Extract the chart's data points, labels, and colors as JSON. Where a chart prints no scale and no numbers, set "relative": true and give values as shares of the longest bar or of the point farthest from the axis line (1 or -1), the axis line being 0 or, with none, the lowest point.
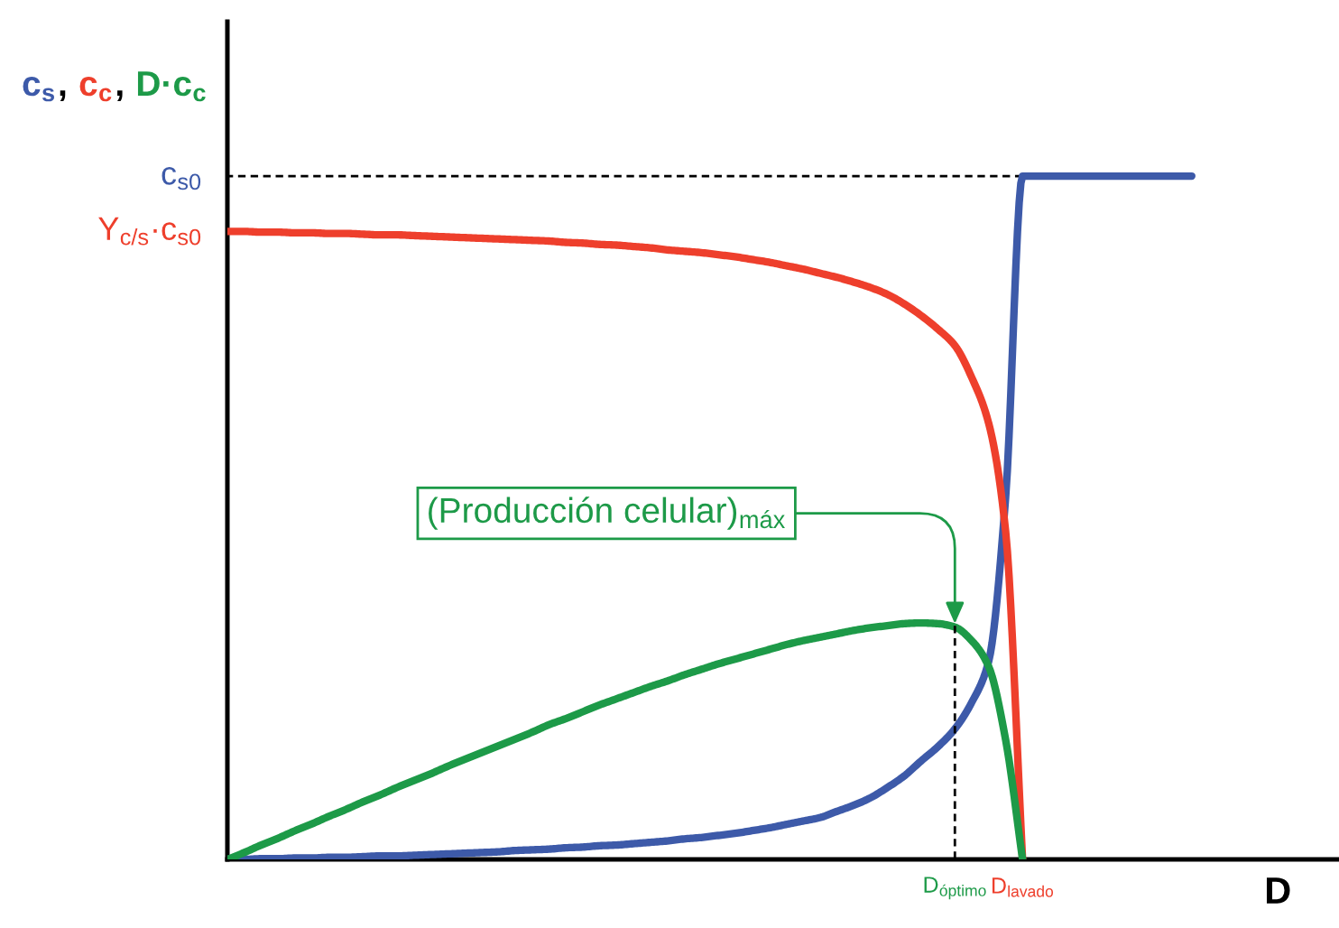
{
  "chart_data": {
    "type": "line",
    "line_style": "solid",
    "relative": true,
    "xlabel": "D",
    "ylabel": "c$_{s}$, c$_{c}$, D·c$_{c}$",
    "tick_labels": "x",
    "categories": [
      null,
      null,
      null,
      null,
      null,
      null,
      null,
      null,
      null,
      null,
      null,
      null,
      null,
      null,
      null,
      null,
      null,
      null,
      null,
      null,
      null,
      null,
      null,
      null,
      null,
      null,
      null,
      null,
      null,
      null,
      null,
      null,
      null,
      null,
      null,
      null,
      null,
      null,
      null,
      null,
      null,
      null,
      null,
      "D$_{óptimo}$",
      null,
      null,
      null,
      "D$_{lavado}$",
      null,
      null,
      null,
      null,
      null,
      null,
      null,
      null,
      null,
      null
    ],
    "ref_lines": [
      {
        "axis": "y",
        "value": 1,
        "label": "c$_{s0}$",
        "color": "#000000",
        "line_style": "dashed"
      }
    ],
    "annotations": [
      "Y$_{c/s}$·c$_{s0}$",
      {
        "text": "(Producción celular)$_{máx}$",
        "x": "D$_{óptimo}$",
        "y": 0.345
      }
    ],
    "series": [
      {
        "color": "#3d5aa9",
        "values": [
          0,
          0,
          0.001,
          0.001,
          0.002,
          0.002,
          0.003,
          0.003,
          0.004,
          0.005,
          0.005,
          0.006,
          0.007,
          0.008,
          0.009,
          0.01,
          0.011,
          0.013,
          0.014,
          0.015,
          0.017,
          0.018,
          0.02,
          0.021,
          0.023,
          0.025,
          0.027,
          0.03,
          0.032,
          0.035,
          0.038,
          0.042,
          0.046,
          0.051,
          0.056,
          0.061,
          0.07,
          0.079,
          0.09,
          0.105,
          0.122,
          0.144,
          0.165,
          0.191,
          0.23,
          0.29,
          0.53,
          1,
          1,
          1,
          1,
          1,
          1,
          1,
          1,
          1,
          1,
          1
        ]
      },
      {
        "color": "#ee3f2c",
        "values": [
          0.919,
          0.919,
          0.918,
          0.918,
          0.917,
          0.917,
          0.916,
          0.916,
          0.915,
          0.914,
          0.914,
          0.913,
          0.912,
          0.911,
          0.91,
          0.909,
          0.908,
          0.907,
          0.906,
          0.905,
          0.903,
          0.902,
          0.9,
          0.899,
          0.897,
          0.895,
          0.892,
          0.89,
          0.888,
          0.885,
          0.882,
          0.878,
          0.874,
          0.869,
          0.864,
          0.858,
          0.852,
          0.845,
          0.837,
          0.827,
          0.813,
          0.796,
          0.776,
          0.752,
          0.705,
          0.638,
          0.48,
          0,
          null,
          null,
          null,
          null,
          null,
          null,
          null,
          null,
          null,
          null
        ]
      },
      {
        "color": "#1d9a48",
        "values": [
          0,
          0.01,
          0.021,
          0.031,
          0.042,
          0.052,
          0.063,
          0.073,
          0.084,
          0.094,
          0.105,
          0.115,
          0.125,
          0.136,
          0.146,
          0.156,
          0.166,
          0.176,
          0.186,
          0.197,
          0.206,
          0.216,
          0.226,
          0.235,
          0.244,
          0.253,
          0.261,
          0.27,
          0.278,
          0.286,
          0.293,
          0.3,
          0.307,
          0.314,
          0.32,
          0.325,
          0.33,
          0.335,
          0.339,
          0.342,
          0.345,
          0.346,
          0.345,
          0.34,
          0.32,
          0.282,
          0.175,
          0,
          null,
          null,
          null,
          null,
          null,
          null,
          null,
          null,
          null,
          null
        ]
      },
      {
        "color": "#000000",
        "line_style": "dashed",
        "x": [
          "D$_{óptimo}$",
          "D$_{óptimo}$"
        ],
        "values": [
          0,
          0.342
        ]
      }
    ]
  }
}
